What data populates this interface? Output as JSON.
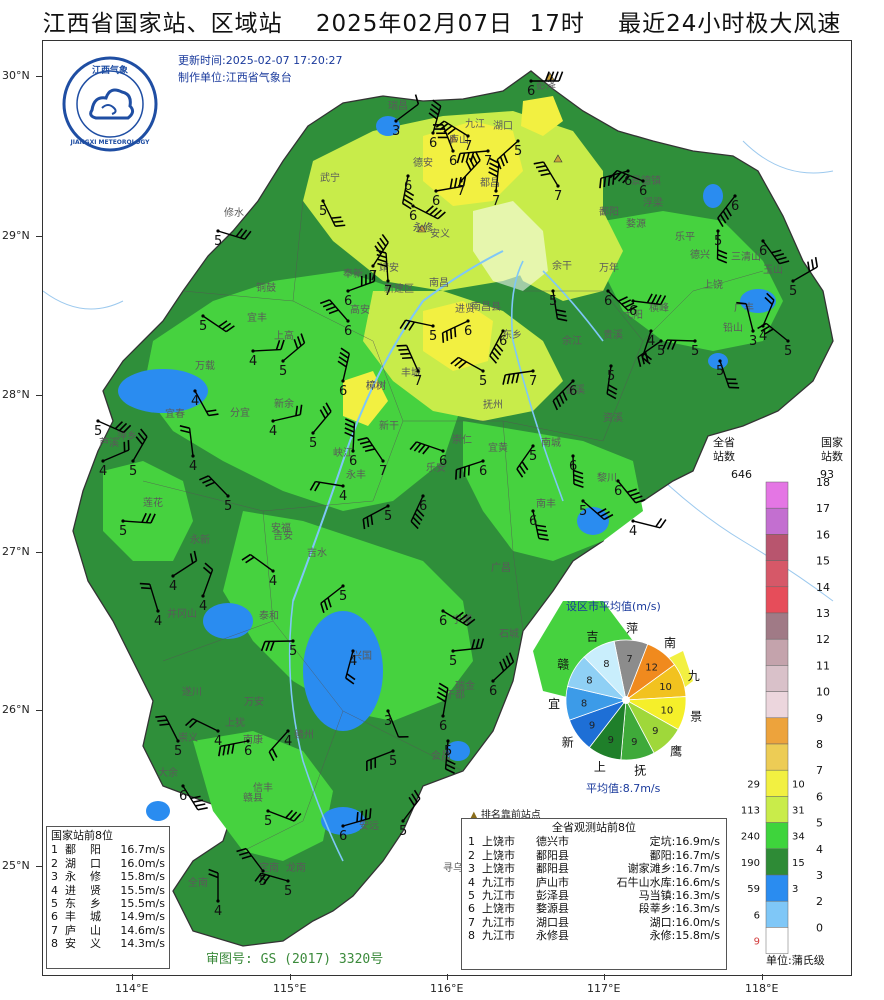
{
  "title": "江西省国家站、区域站    2025年02月07日  17时    最近24小时极大风速",
  "update_time": "更新时间:2025-02-07 17:20:27",
  "producer": "制作单位:江西省气象台",
  "logo": {
    "name": "江西气象",
    "name_en": "JIANGXI METEOROLOGY"
  },
  "approval": "审图号: GS (2017) 3320号",
  "lat_labels": [
    "30°N",
    "29°N",
    "28°N",
    "27°N",
    "26°N",
    "25°N"
  ],
  "lon_labels": [
    "114°E",
    "115°E",
    "116°E",
    "117°E",
    "118°E"
  ],
  "national_top": {
    "title": "国家站前8位",
    "rows": [
      {
        "rank": "1",
        "name": "鄱    阳",
        "value": "16.7m/s"
      },
      {
        "rank": "2",
        "name": "湖    口",
        "value": "16.0m/s"
      },
      {
        "rank": "3",
        "name": "永    修",
        "value": "15.8m/s"
      },
      {
        "rank": "4",
        "name": "进    贤",
        "value": "15.5m/s"
      },
      {
        "rank": "5",
        "name": "东    乡",
        "value": "15.5m/s"
      },
      {
        "rank": "6",
        "name": "丰    城",
        "value": "14.9m/s"
      },
      {
        "rank": "7",
        "name": "庐    山",
        "value": "14.6m/s"
      },
      {
        "rank": "8",
        "name": "安    义",
        "value": "14.3m/s"
      }
    ]
  },
  "province_top": {
    "title": "全省观测站前8位",
    "rows": [
      {
        "rank": "1",
        "city": "上饶市",
        "county": "德兴市",
        "station": "定坑",
        "value": "16.9m/s"
      },
      {
        "rank": "2",
        "city": "上饶市",
        "county": "鄱阳县",
        "station": "鄱阳",
        "value": "16.7m/s"
      },
      {
        "rank": "3",
        "city": "上饶市",
        "county": "鄱阳县",
        "station": "谢家滩乡",
        "value": "16.7m/s"
      },
      {
        "rank": "4",
        "city": "九江市",
        "county": "庐山市",
        "station": "石牛山水库",
        "value": "16.6m/s"
      },
      {
        "rank": "5",
        "city": "九江市",
        "county": "彭泽县",
        "station": "马当镇",
        "value": "16.3m/s"
      },
      {
        "rank": "6",
        "city": "上饶市",
        "county": "婺源县",
        "station": "段莘乡",
        "value": "16.3m/s"
      },
      {
        "rank": "7",
        "city": "九江市",
        "county": "湖口县",
        "station": "湖口",
        "value": "16.0m/s"
      },
      {
        "rank": "8",
        "city": "九江市",
        "county": "永修县",
        "station": "永修",
        "value": "15.8m/s"
      }
    ]
  },
  "top_marker_legend": "排名靠前站点",
  "pie": {
    "title": "设区市平均值(m/s)",
    "average": "平均值:8.7m/s",
    "segments": [
      {
        "city": "萍",
        "value": 7,
        "color": "#8c8c8c"
      },
      {
        "city": "南",
        "value": 12,
        "color": "#f08a1e"
      },
      {
        "city": "九",
        "value": 10,
        "color": "#f2c21f"
      },
      {
        "city": "景",
        "value": 10,
        "color": "#f5ef2a"
      },
      {
        "city": "鹰",
        "value": 9,
        "color": "#9fd83a"
      },
      {
        "city": "抚",
        "value": 9,
        "color": "#3faa3a"
      },
      {
        "city": "上",
        "value": 9,
        "color": "#1f7f2a"
      },
      {
        "city": "新",
        "value": 9,
        "color": "#1e6fd6"
      },
      {
        "city": "宜",
        "value": 8,
        "color": "#3c9be8"
      },
      {
        "city": "赣",
        "value": 8,
        "color": "#8fd0f5"
      },
      {
        "city": "吉",
        "value": 8,
        "color": "#c9eefc"
      }
    ]
  },
  "legend": {
    "header_province": "全省站数",
    "header_national": "国家站数",
    "province_total": "646",
    "national_total": "93",
    "unit": "单位:蒲氏级",
    "levels": [
      {
        "level": "18",
        "color": "#e476e4",
        "province": "",
        "national": ""
      },
      {
        "level": "17",
        "color": "#c36fd0",
        "province": "",
        "national": ""
      },
      {
        "level": "16",
        "color": "#b8556e",
        "province": "",
        "national": ""
      },
      {
        "level": "15",
        "color": "#d65868",
        "province": "",
        "national": ""
      },
      {
        "level": "14",
        "color": "#e64d5a",
        "province": "",
        "national": ""
      },
      {
        "level": "13",
        "color": "#a07a86",
        "province": "",
        "national": ""
      },
      {
        "level": "12",
        "color": "#c4a3ac",
        "province": "",
        "national": ""
      },
      {
        "level": "11",
        "color": "#d9c1c9",
        "province": "",
        "national": ""
      },
      {
        "level": "10",
        "color": "#ecd6dd",
        "province": "",
        "national": ""
      },
      {
        "level": "9",
        "color": "#eda33c",
        "province": "",
        "national": ""
      },
      {
        "level": "8",
        "color": "#edcc55",
        "province": "",
        "national": ""
      },
      {
        "level": "7",
        "color": "#f2f041",
        "province": "29",
        "national": "10"
      },
      {
        "level": "6",
        "color": "#c9ec4a",
        "province": "113",
        "national": "31"
      },
      {
        "level": "5",
        "color": "#3ed43c",
        "province": "240",
        "national": "34"
      },
      {
        "level": "4",
        "color": "#2e8b36",
        "province": "190",
        "national": "15"
      },
      {
        "level": "3",
        "color": "#2a8cf0",
        "province": "59",
        "national": "3"
      },
      {
        "level": "2",
        "color": "#7fc7f7",
        "province": "6",
        "national": ""
      },
      {
        "level": "0",
        "color": "#ffffff",
        "province": "9",
        "national": ""
      }
    ]
  },
  "city_labels": [
    "彭泽",
    "湖口",
    "瑞昌",
    "庐山",
    "九江",
    "德安",
    "武宁",
    "都昌",
    "修水",
    "永修",
    "鄱阳",
    "景德镇",
    "浮梁",
    "婺源",
    "靖安",
    "安义",
    "乐平",
    "德兴",
    "三清山",
    "玉山",
    "铜鼓",
    "奉新",
    "南昌",
    "新建区",
    "进贤",
    "余干",
    "万年",
    "弋阳",
    "横峰",
    "上饶",
    "广丰",
    "铅山",
    "宜丰",
    "上高",
    "高安",
    "南昌县",
    "东乡",
    "余江",
    "贵溪",
    "万载",
    "丰城",
    "抚州",
    "金溪",
    "资溪",
    "萍乡",
    "宜春",
    "分宜",
    "新余",
    "樟树",
    "新干",
    "崇仁",
    "宜黄",
    "南城",
    "黎川",
    "峡江",
    "永丰",
    "乐安",
    "南丰",
    "广昌",
    "莲花",
    "永新",
    "吉安",
    "吉水",
    "泰和",
    "宁都",
    "石城",
    "井冈山",
    "遂川",
    "万安",
    "兴国",
    "瑞金",
    "崇义",
    "上犹",
    "赣州",
    "于都",
    "会昌",
    "大余",
    "信丰",
    "安远",
    "寻乌",
    "龙南",
    "全南",
    "定南",
    "赣县",
    "南康",
    "安福",
    "芦溪",
    "永修",
    "樟树"
  ]
}
